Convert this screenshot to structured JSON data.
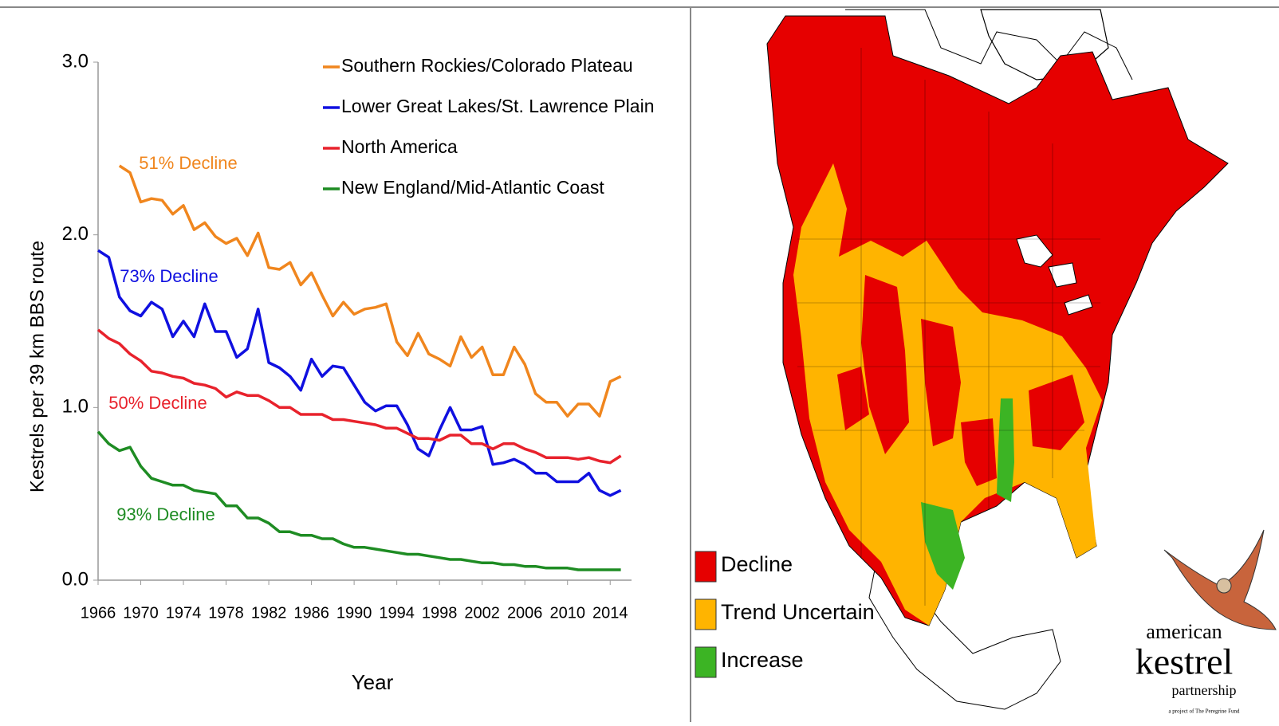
{
  "chart_data": {
    "type": "line",
    "y_label": "Kestrels per 39 km BBS route",
    "x_label": "Year",
    "x": [
      1966,
      1967,
      1968,
      1969,
      1970,
      1971,
      1972,
      1973,
      1974,
      1975,
      1976,
      1977,
      1978,
      1979,
      1980,
      1981,
      1982,
      1983,
      1984,
      1985,
      1986,
      1987,
      1988,
      1989,
      1990,
      1991,
      1992,
      1993,
      1994,
      1995,
      1996,
      1997,
      1998,
      1999,
      2000,
      2001,
      2002,
      2003,
      2004,
      2005,
      2006,
      2007,
      2008,
      2009,
      2010,
      2011,
      2012,
      2013,
      2014,
      2015
    ],
    "xlim": [
      1966,
      2016
    ],
    "xticks": [
      1966,
      1970,
      1974,
      1978,
      1982,
      1986,
      1990,
      1994,
      1998,
      2002,
      2006,
      2010,
      2014
    ],
    "ylim": [
      0,
      3
    ],
    "yticks": [
      {
        "value": 0,
        "label": "0.0"
      },
      {
        "value": 1,
        "label": "1.0"
      },
      {
        "value": 2,
        "label": "2.0"
      },
      {
        "value": 3,
        "label": "3.0"
      }
    ],
    "series": [
      {
        "name": "Southern Rockies/Colorado Plateau",
        "color": "#f0861e",
        "values": [
          null,
          null,
          2.4,
          2.36,
          2.19,
          2.21,
          2.2,
          2.12,
          2.17,
          2.03,
          2.07,
          1.99,
          1.95,
          1.98,
          1.88,
          2.01,
          1.81,
          1.8,
          1.84,
          1.71,
          1.78,
          1.65,
          1.53,
          1.61,
          1.54,
          1.57,
          1.58,
          1.6,
          1.38,
          1.3,
          1.43,
          1.31,
          1.28,
          1.24,
          1.41,
          1.29,
          1.35,
          1.19,
          1.19,
          1.35,
          1.25,
          1.08,
          1.03,
          1.03,
          0.95,
          1.02,
          1.02,
          0.95,
          1.15,
          1.18
        ]
      },
      {
        "name": "Lower Great Lakes/St. Lawrence Plain",
        "color": "#1010e0",
        "values": [
          1.91,
          1.87,
          1.64,
          1.56,
          1.53,
          1.61,
          1.57,
          1.41,
          1.5,
          1.41,
          1.6,
          1.44,
          1.44,
          1.29,
          1.34,
          1.57,
          1.26,
          1.23,
          1.18,
          1.1,
          1.28,
          1.18,
          1.24,
          1.23,
          1.13,
          1.03,
          0.98,
          1.01,
          1.01,
          0.9,
          0.76,
          0.72,
          0.87,
          1.0,
          0.87,
          0.87,
          0.89,
          0.67,
          0.68,
          0.7,
          0.67,
          0.62,
          0.62,
          0.57,
          0.57,
          0.57,
          0.62,
          0.52,
          0.49,
          0.52
        ]
      },
      {
        "name": "North America",
        "color": "#e8222c",
        "values": [
          1.45,
          1.4,
          1.37,
          1.31,
          1.27,
          1.21,
          1.2,
          1.18,
          1.17,
          1.14,
          1.13,
          1.11,
          1.06,
          1.09,
          1.07,
          1.07,
          1.04,
          1.0,
          1.0,
          0.96,
          0.96,
          0.96,
          0.93,
          0.93,
          0.92,
          0.91,
          0.9,
          0.88,
          0.88,
          0.85,
          0.82,
          0.82,
          0.81,
          0.84,
          0.84,
          0.79,
          0.79,
          0.76,
          0.79,
          0.79,
          0.76,
          0.74,
          0.71,
          0.71,
          0.71,
          0.7,
          0.71,
          0.69,
          0.68,
          0.72
        ]
      },
      {
        "name": "New England/Mid-Atlantic Coast",
        "color": "#1e8c23",
        "values": [
          0.86,
          0.79,
          0.75,
          0.77,
          0.66,
          0.59,
          0.57,
          0.55,
          0.55,
          0.52,
          0.51,
          0.5,
          0.43,
          0.43,
          0.36,
          0.36,
          0.33,
          0.28,
          0.28,
          0.26,
          0.26,
          0.24,
          0.24,
          0.21,
          0.19,
          0.19,
          0.18,
          0.17,
          0.16,
          0.15,
          0.15,
          0.14,
          0.13,
          0.12,
          0.12,
          0.11,
          0.1,
          0.1,
          0.09,
          0.09,
          0.08,
          0.08,
          0.07,
          0.07,
          0.07,
          0.06,
          0.06,
          0.06,
          0.06,
          0.06
        ]
      }
    ],
    "annotations": [
      {
        "text": "51% Decline",
        "color": "#f0861e"
      },
      {
        "text": "73% Decline",
        "color": "#1010e0"
      },
      {
        "text": "50% Decline",
        "color": "#e8222c"
      },
      {
        "text": "93% Decline",
        "color": "#1e8c23"
      }
    ]
  },
  "map": {
    "legend": [
      {
        "label": "Decline",
        "color": "#e60000"
      },
      {
        "label": "Trend Uncertain",
        "color": "#ffb400"
      },
      {
        "label": "Increase",
        "color": "#3cb424"
      }
    ],
    "logo": {
      "line1": "american",
      "line2": "kestrel",
      "line3": "partnership",
      "note": "a project of The Peregrine Fund"
    }
  }
}
